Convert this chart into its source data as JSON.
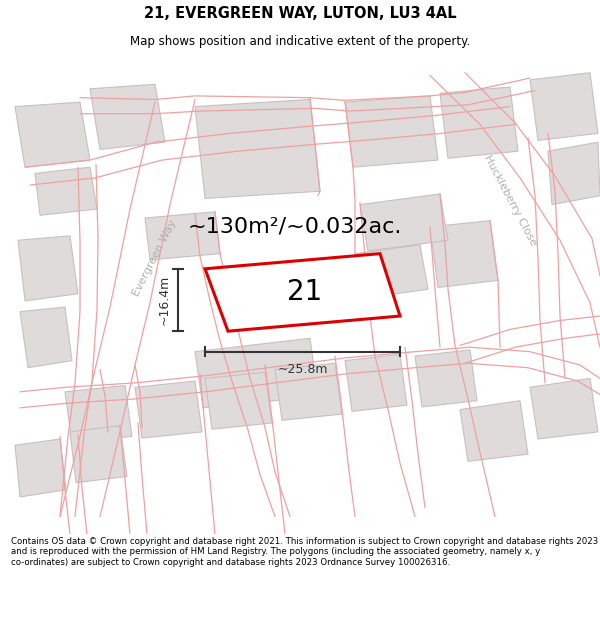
{
  "title": "21, EVERGREEN WAY, LUTON, LU3 4AL",
  "subtitle": "Map shows position and indicative extent of the property.",
  "footer": "Contains OS data © Crown copyright and database right 2021. This information is subject to Crown copyright and database rights 2023 and is reproduced with the permission of HM Land Registry. The polygons (including the associated geometry, namely x, y co-ordinates) are subject to Crown copyright and database rights 2023 Ordnance Survey 100026316.",
  "area_label": "~130m²/~0.032ac.",
  "plot_number": "21",
  "dim_width": "~25.8m",
  "dim_height": "~16.4m",
  "street_label_1": "Evergreen Way",
  "street_label_2": "Huckleberry Close",
  "map_bg": "#f2f0f0",
  "plot_fill": "#ffffff",
  "plot_edge": "#dd0000",
  "road_line": "#f0a0a0",
  "building_fill": "#e0dbdb",
  "building_edge": "#c8c0c0",
  "street_label_color": "#b0b0b0",
  "dim_color": "#333333",
  "title_fontsize": 10.5,
  "subtitle_fontsize": 8.5,
  "footer_fontsize": 6.2,
  "area_fontsize": 16,
  "number_fontsize": 20,
  "dim_fontsize": 9,
  "street_fontsize": 8
}
